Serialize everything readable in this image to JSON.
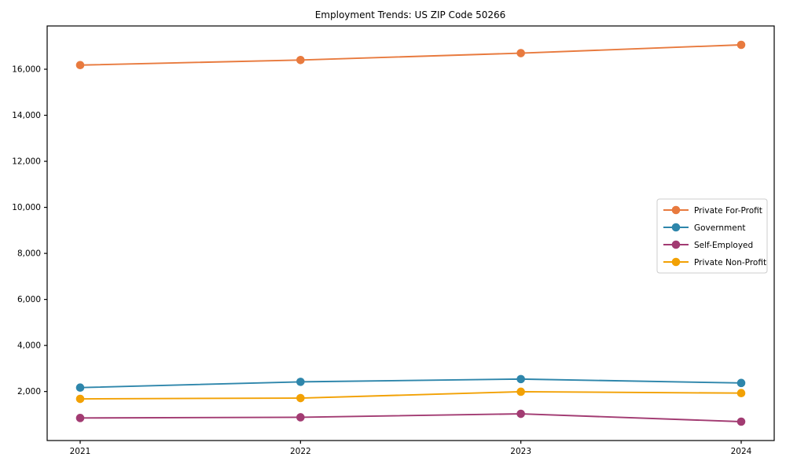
{
  "figure": {
    "title": "Employment Trends: US ZIP Code 50266",
    "background_color": "#ffffff",
    "spine_color": "#000000"
  },
  "chart_data": {
    "type": "line",
    "title": "Employment Trends: US ZIP Code 50266",
    "xlabel": "",
    "ylabel": "",
    "grid": false,
    "legend_position": "center-right",
    "x": [
      "2021",
      "2022",
      "2023",
      "2024"
    ],
    "ylim": [
      -130,
      17880
    ],
    "yticks": [
      2000,
      4000,
      6000,
      8000,
      10000,
      12000,
      14000,
      16000
    ],
    "ytick_labels": [
      "2,000",
      "4,000",
      "6,000",
      "8,000",
      "10,000",
      "12,000",
      "14,000",
      "16,000"
    ],
    "series": [
      {
        "name": "Private For-Profit",
        "color": "#E87A3E",
        "values": [
          16180,
          16400,
          16700,
          17060
        ]
      },
      {
        "name": "Government",
        "color": "#2E86AB",
        "values": [
          2170,
          2420,
          2540,
          2370
        ]
      },
      {
        "name": "Self-Employed",
        "color": "#A23B72",
        "values": [
          850,
          880,
          1030,
          690
        ]
      },
      {
        "name": "Private Non-Profit",
        "color": "#F2A104",
        "values": [
          1680,
          1715,
          1990,
          1930
        ]
      }
    ],
    "legend": {
      "border_color": "#cccccc",
      "background_color": "#ffffff",
      "entries": [
        "Private For-Profit",
        "Government",
        "Self-Employed",
        "Private Non-Profit"
      ]
    }
  }
}
